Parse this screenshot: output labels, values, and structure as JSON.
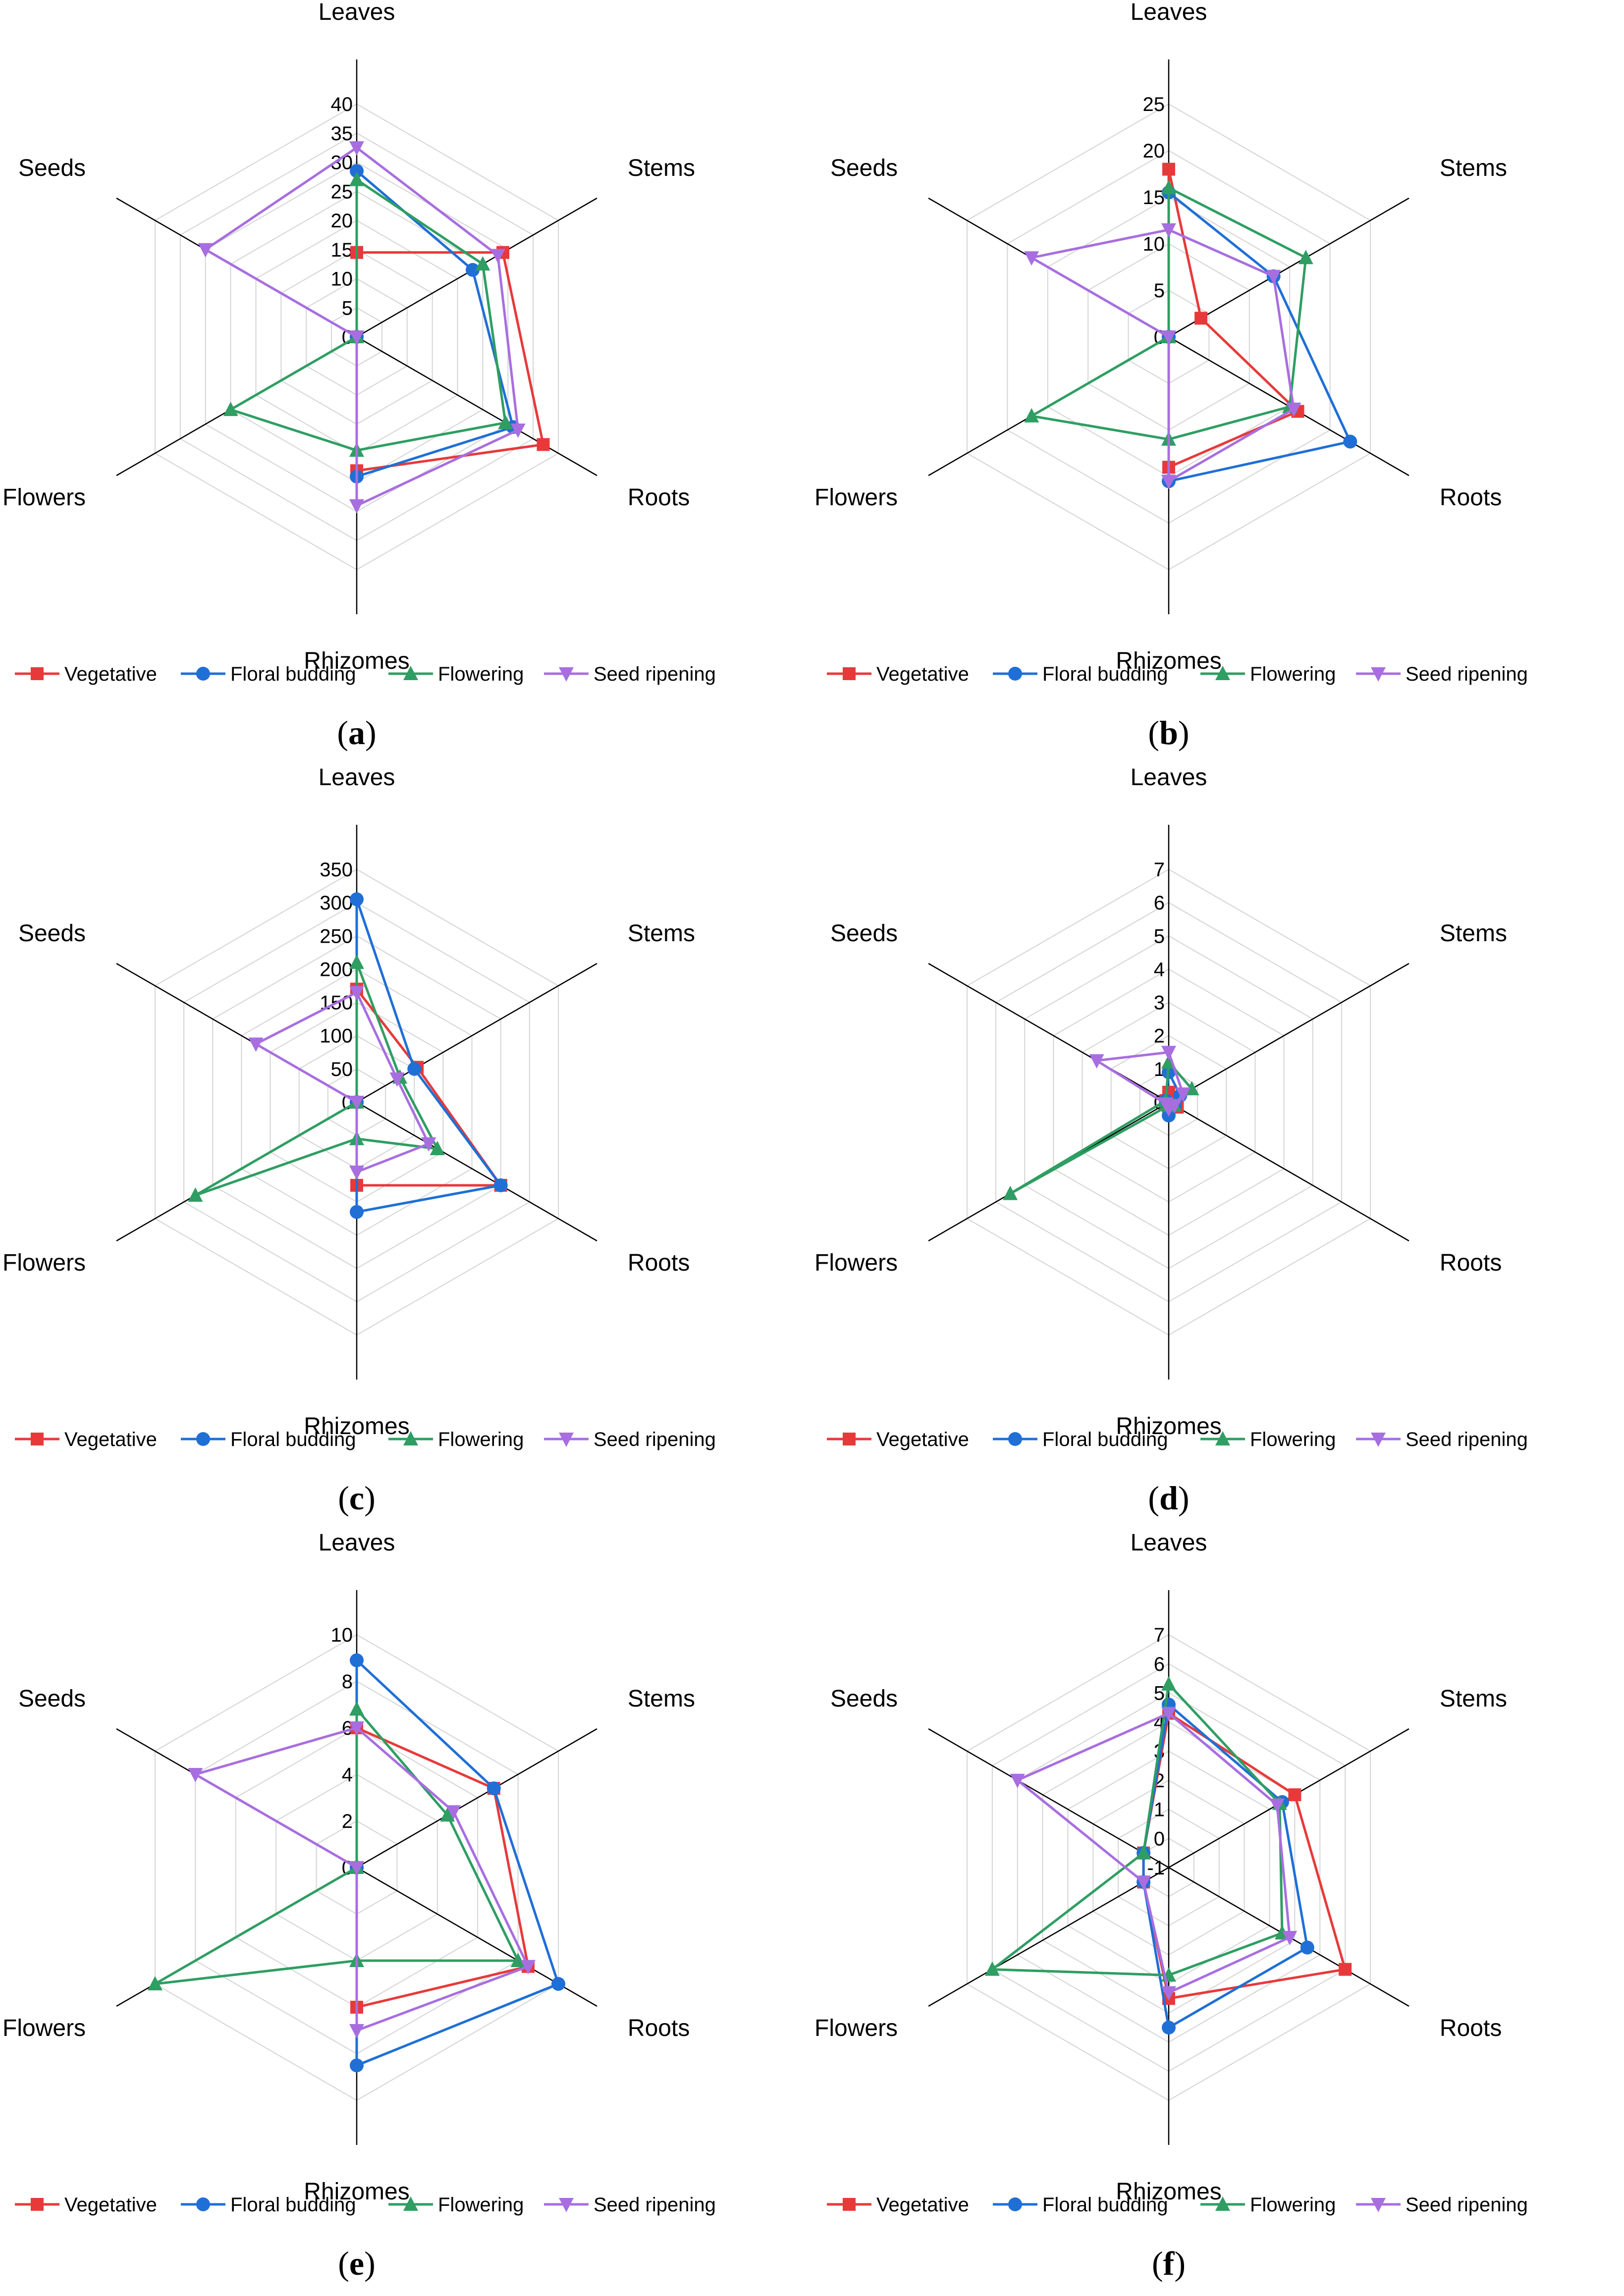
{
  "figure": {
    "categories": [
      "Leaves",
      "Stems",
      "Roots",
      "Rhizomes",
      "Flowers",
      "Seeds"
    ],
    "series_names": [
      "Vegetative",
      "Floral budding",
      "Flowering",
      "Seed ripening"
    ],
    "series_colors": [
      "#e8393a",
      "#1f6fd6",
      "#2e9e62",
      "#a86ee0"
    ],
    "series_markers": [
      "square",
      "circle",
      "triangle-up",
      "triangle-down"
    ]
  },
  "chart_data": [
    {
      "type": "radar",
      "panel_label": "a",
      "categories": [
        "Leaves",
        "Stems",
        "Roots",
        "Rhizomes",
        "Flowers",
        "Seeds"
      ],
      "rmin": 0,
      "rmax": 40,
      "ticks": [
        0,
        5,
        10,
        15,
        20,
        25,
        30,
        35,
        40
      ],
      "series": [
        {
          "name": "Vegetative",
          "values": [
            14.5,
            29,
            37,
            23,
            0,
            0
          ]
        },
        {
          "name": "Floral budding",
          "values": [
            28.5,
            23,
            31,
            24,
            0,
            0
          ]
        },
        {
          "name": "Flowering",
          "values": [
            27,
            25,
            29.5,
            19.5,
            25,
            0
          ]
        },
        {
          "name": "Seed ripening",
          "values": [
            32.5,
            28,
            32,
            29,
            0,
            30
          ]
        }
      ]
    },
    {
      "type": "radar",
      "panel_label": "b",
      "categories": [
        "Leaves",
        "Stems",
        "Roots",
        "Rhizomes",
        "Flowers",
        "Seeds"
      ],
      "rmin": 0,
      "rmax": 25,
      "ticks": [
        0,
        5,
        10,
        15,
        20,
        25
      ],
      "series": [
        {
          "name": "Vegetative",
          "values": [
            18,
            4,
            16,
            14,
            0,
            0
          ]
        },
        {
          "name": "Floral budding",
          "values": [
            15.5,
            13,
            22.5,
            15.5,
            0,
            0
          ]
        },
        {
          "name": "Flowering",
          "values": [
            16,
            17,
            15,
            11,
            17,
            0
          ]
        },
        {
          "name": "Seed ripening",
          "values": [
            11.5,
            13,
            15.5,
            15.5,
            0,
            17
          ]
        }
      ]
    },
    {
      "type": "radar",
      "panel_label": "c",
      "categories": [
        "Leaves",
        "Stems",
        "Roots",
        "Rhizomes",
        "Flowers",
        "Seeds"
      ],
      "rmin": 0,
      "rmax": 350,
      "ticks": [
        0,
        50,
        100,
        150,
        200,
        250,
        300,
        350
      ],
      "series": [
        {
          "name": "Vegetative",
          "values": [
            170,
            105,
            250,
            125,
            0,
            0
          ]
        },
        {
          "name": "Floral budding",
          "values": [
            305,
            100,
            250,
            165,
            0,
            0
          ]
        },
        {
          "name": "Flowering",
          "values": [
            210,
            75,
            140,
            55,
            280,
            0
          ]
        },
        {
          "name": "Seed ripening",
          "values": [
            165,
            70,
            125,
            105,
            0,
            175
          ]
        }
      ]
    },
    {
      "type": "radar",
      "panel_label": "d",
      "categories": [
        "Leaves",
        "Stems",
        "Roots",
        "Rhizomes",
        "Flowers",
        "Seeds"
      ],
      "rmin": 0,
      "rmax": 7,
      "ticks": [
        0,
        1,
        2,
        3,
        4,
        5,
        6,
        7
      ],
      "series": [
        {
          "name": "Vegetative",
          "values": [
            0.3,
            0.3,
            0.3,
            0.2,
            0.1,
            0.1
          ]
        },
        {
          "name": "Floral budding",
          "values": [
            0.9,
            0.4,
            0.2,
            0.4,
            0.1,
            0.1
          ]
        },
        {
          "name": "Flowering",
          "values": [
            1.2,
            0.8,
            0.2,
            0.1,
            5.5,
            0.1
          ]
        },
        {
          "name": "Seed ripening",
          "values": [
            1.5,
            0.5,
            0.2,
            0.2,
            0.1,
            2.5
          ]
        }
      ]
    },
    {
      "type": "radar",
      "panel_label": "e",
      "categories": [
        "Leaves",
        "Stems",
        "Roots",
        "Rhizomes",
        "Flowers",
        "Seeds"
      ],
      "rmin": 0,
      "rmax": 10,
      "ticks": [
        0,
        2,
        4,
        6,
        8,
        10
      ],
      "series": [
        {
          "name": "Vegetative",
          "values": [
            6,
            6.8,
            8.5,
            6,
            0,
            0
          ]
        },
        {
          "name": "Floral budding",
          "values": [
            8.9,
            6.8,
            10,
            8.5,
            0,
            0
          ]
        },
        {
          "name": "Flowering",
          "values": [
            6.8,
            4.5,
            8,
            4,
            10,
            0
          ]
        },
        {
          "name": "Seed ripening",
          "values": [
            6,
            4.8,
            8.5,
            7,
            0,
            8
          ]
        }
      ]
    },
    {
      "type": "radar",
      "panel_label": "f",
      "categories": [
        "Leaves",
        "Stems",
        "Roots",
        "Rhizomes",
        "Flowers",
        "Seeds"
      ],
      "rmin": -1,
      "rmax": 7,
      "ticks": [
        -1,
        0,
        1,
        2,
        3,
        4,
        5,
        6,
        7
      ],
      "series": [
        {
          "name": "Vegetative",
          "values": [
            4.3,
            4,
            6,
            3.5,
            0,
            0
          ]
        },
        {
          "name": "Floral budding",
          "values": [
            4.6,
            3.5,
            4.5,
            4.5,
            0,
            0
          ]
        },
        {
          "name": "Flowering",
          "values": [
            5.3,
            3.4,
            3.5,
            2.7,
            6,
            0
          ]
        },
        {
          "name": "Seed ripening",
          "values": [
            4.3,
            3.3,
            3.8,
            3.3,
            0,
            5
          ]
        }
      ]
    }
  ]
}
